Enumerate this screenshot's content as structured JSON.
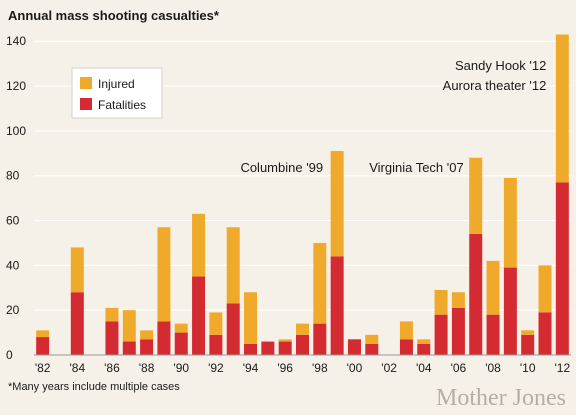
{
  "title": "Annual mass shooting casualties*",
  "footnote": "*Many years include multiple cases",
  "brand": "Mother Jones",
  "colors": {
    "injured": "#f0aa2b",
    "fatalities": "#d42a31",
    "background": "#f6f1e8"
  },
  "chart_data": {
    "type": "bar",
    "stacked": true,
    "title": "Annual mass shooting casualties*",
    "xlabel": "",
    "ylabel": "",
    "ylim": [
      0,
      145
    ],
    "yticks": [
      0,
      20,
      40,
      60,
      80,
      100,
      120,
      140
    ],
    "grid": true,
    "legend_position": "top-left",
    "years": [
      1982,
      1983,
      1984,
      1985,
      1986,
      1987,
      1988,
      1989,
      1990,
      1991,
      1992,
      1993,
      1994,
      1995,
      1996,
      1997,
      1998,
      1999,
      2000,
      2001,
      2002,
      2003,
      2004,
      2005,
      2006,
      2007,
      2008,
      2009,
      2010,
      2011,
      2012
    ],
    "x_tick_labels": [
      {
        "year": 1982,
        "label": "'82"
      },
      {
        "year": 1984,
        "label": "'84"
      },
      {
        "year": 1986,
        "label": "'86"
      },
      {
        "year": 1988,
        "label": "'88"
      },
      {
        "year": 1990,
        "label": "'90"
      },
      {
        "year": 1992,
        "label": "'92"
      },
      {
        "year": 1994,
        "label": "'94"
      },
      {
        "year": 1996,
        "label": "'96"
      },
      {
        "year": 1998,
        "label": "'98"
      },
      {
        "year": 2000,
        "label": "'00"
      },
      {
        "year": 2002,
        "label": "'02"
      },
      {
        "year": 2004,
        "label": "'04"
      },
      {
        "year": 2006,
        "label": "'06"
      },
      {
        "year": 2008,
        "label": "'08"
      },
      {
        "year": 2010,
        "label": "'10"
      },
      {
        "year": 2012,
        "label": "'12"
      }
    ],
    "series": [
      {
        "name": "Fatalities",
        "color": "#d42a31",
        "values": [
          8,
          0,
          28,
          0,
          15,
          6,
          7,
          15,
          10,
          35,
          9,
          23,
          5,
          6,
          6,
          9,
          14,
          44,
          7,
          5,
          0,
          7,
          5,
          18,
          21,
          54,
          18,
          39,
          9,
          19,
          77
        ]
      },
      {
        "name": "Injured",
        "color": "#f0aa2b",
        "values": [
          3,
          0,
          20,
          0,
          6,
          14,
          4,
          42,
          4,
          28,
          10,
          34,
          23,
          0,
          1,
          5,
          36,
          47,
          0,
          4,
          0,
          8,
          2,
          11,
          7,
          34,
          24,
          40,
          2,
          21,
          66
        ]
      }
    ],
    "annotations": [
      {
        "text": "Columbine '99",
        "year": 1999
      },
      {
        "text": "Virginia Tech '07",
        "year": 2007
      },
      {
        "text": "Sandy Hook '12",
        "year": 2012
      },
      {
        "text": "Aurora theater '12",
        "year": 2012
      }
    ]
  }
}
